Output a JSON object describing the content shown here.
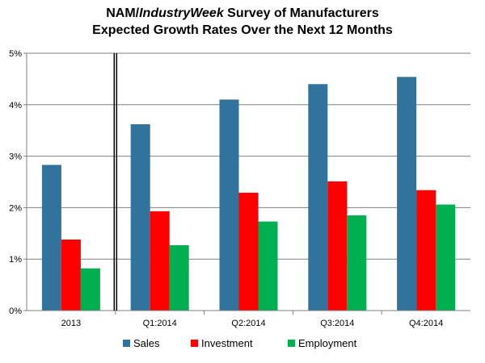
{
  "chart_data": {
    "type": "bar",
    "title": {
      "prefix": "NAM/",
      "italic": "IndustryWeek",
      "suffix": " Survey of Manufacturers",
      "line2": "Expected Growth Rates Over the Next 12 Months"
    },
    "categories": [
      "2013",
      "Q1:2014",
      "Q2:2014",
      "Q3:2014",
      "Q4:2014"
    ],
    "series": [
      {
        "name": "Sales",
        "color": "#31739c",
        "values": [
          2.83,
          3.62,
          4.1,
          4.4,
          4.54
        ]
      },
      {
        "name": "Investment",
        "color": "#ff0000",
        "values": [
          1.38,
          1.93,
          2.29,
          2.51,
          2.34
        ]
      },
      {
        "name": "Employment",
        "color": "#00b050",
        "values": [
          0.82,
          1.27,
          1.73,
          1.85,
          2.06
        ]
      }
    ],
    "yticks": [
      "0%",
      "1%",
      "2%",
      "3%",
      "4%",
      "5%"
    ],
    "ylim": [
      0,
      5
    ],
    "xlabel": "",
    "ylabel": "",
    "legend_position": "bottom",
    "divider_after_category": "2013"
  }
}
